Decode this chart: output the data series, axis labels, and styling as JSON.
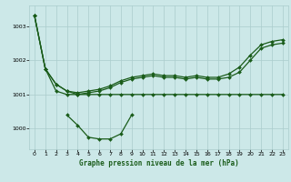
{
  "title": "Graphe pression niveau de la mer (hPa)",
  "bg_color": "#cce8e8",
  "grid_color": "#aacccc",
  "line_color": "#1a5c1a",
  "xlim": [
    -0.5,
    23.5
  ],
  "ylim": [
    999.4,
    1003.6
  ],
  "yticks": [
    1000,
    1001,
    1002,
    1003
  ],
  "xticks": [
    0,
    1,
    2,
    3,
    4,
    5,
    6,
    7,
    8,
    9,
    10,
    11,
    12,
    13,
    14,
    15,
    16,
    17,
    18,
    19,
    20,
    21,
    22,
    23
  ],
  "line1_x": [
    0,
    1,
    2,
    3,
    4,
    5,
    6,
    7,
    8,
    9,
    10,
    11,
    12,
    13,
    14,
    15,
    16,
    17,
    18,
    19,
    20,
    21,
    22,
    23
  ],
  "line1_y": [
    1003.3,
    1001.75,
    1001.1,
    1001.0,
    1001.0,
    1001.0,
    1001.0,
    1001.0,
    1001.0,
    1001.0,
    1001.0,
    1001.0,
    1001.0,
    1001.0,
    1001.0,
    1001.0,
    1001.0,
    1001.0,
    1001.0,
    1001.0,
    1001.0,
    1001.0,
    1001.0,
    1001.0
  ],
  "line2_x": [
    0,
    1,
    2,
    3,
    4,
    5,
    6,
    7,
    8,
    9,
    10,
    11,
    12,
    13,
    14,
    15,
    16,
    17,
    18,
    19,
    20,
    21,
    22,
    23
  ],
  "line2_y": [
    1003.3,
    1001.75,
    1001.3,
    1001.1,
    1001.05,
    1001.1,
    1001.15,
    1001.25,
    1001.4,
    1001.5,
    1001.55,
    1001.6,
    1001.55,
    1001.55,
    1001.5,
    1001.55,
    1001.5,
    1001.5,
    1001.6,
    1001.8,
    1002.15,
    1002.45,
    1002.55,
    1002.6
  ],
  "line3_x": [
    3,
    4,
    5,
    6,
    7,
    8,
    9
  ],
  "line3_y": [
    1000.4,
    1000.1,
    999.75,
    999.7,
    999.7,
    999.85,
    1000.4
  ],
  "line4_x": [
    0,
    1,
    2,
    3,
    4,
    5,
    6,
    7,
    8,
    9,
    10,
    11,
    12,
    13,
    14,
    15,
    16,
    17,
    18,
    19,
    20,
    21,
    22,
    23
  ],
  "line4_y": [
    1003.3,
    1001.75,
    1001.3,
    1001.1,
    1001.0,
    1001.05,
    1001.1,
    1001.2,
    1001.35,
    1001.45,
    1001.5,
    1001.55,
    1001.5,
    1001.5,
    1001.45,
    1001.5,
    1001.45,
    1001.45,
    1001.5,
    1001.65,
    1002.0,
    1002.35,
    1002.45,
    1002.5
  ]
}
